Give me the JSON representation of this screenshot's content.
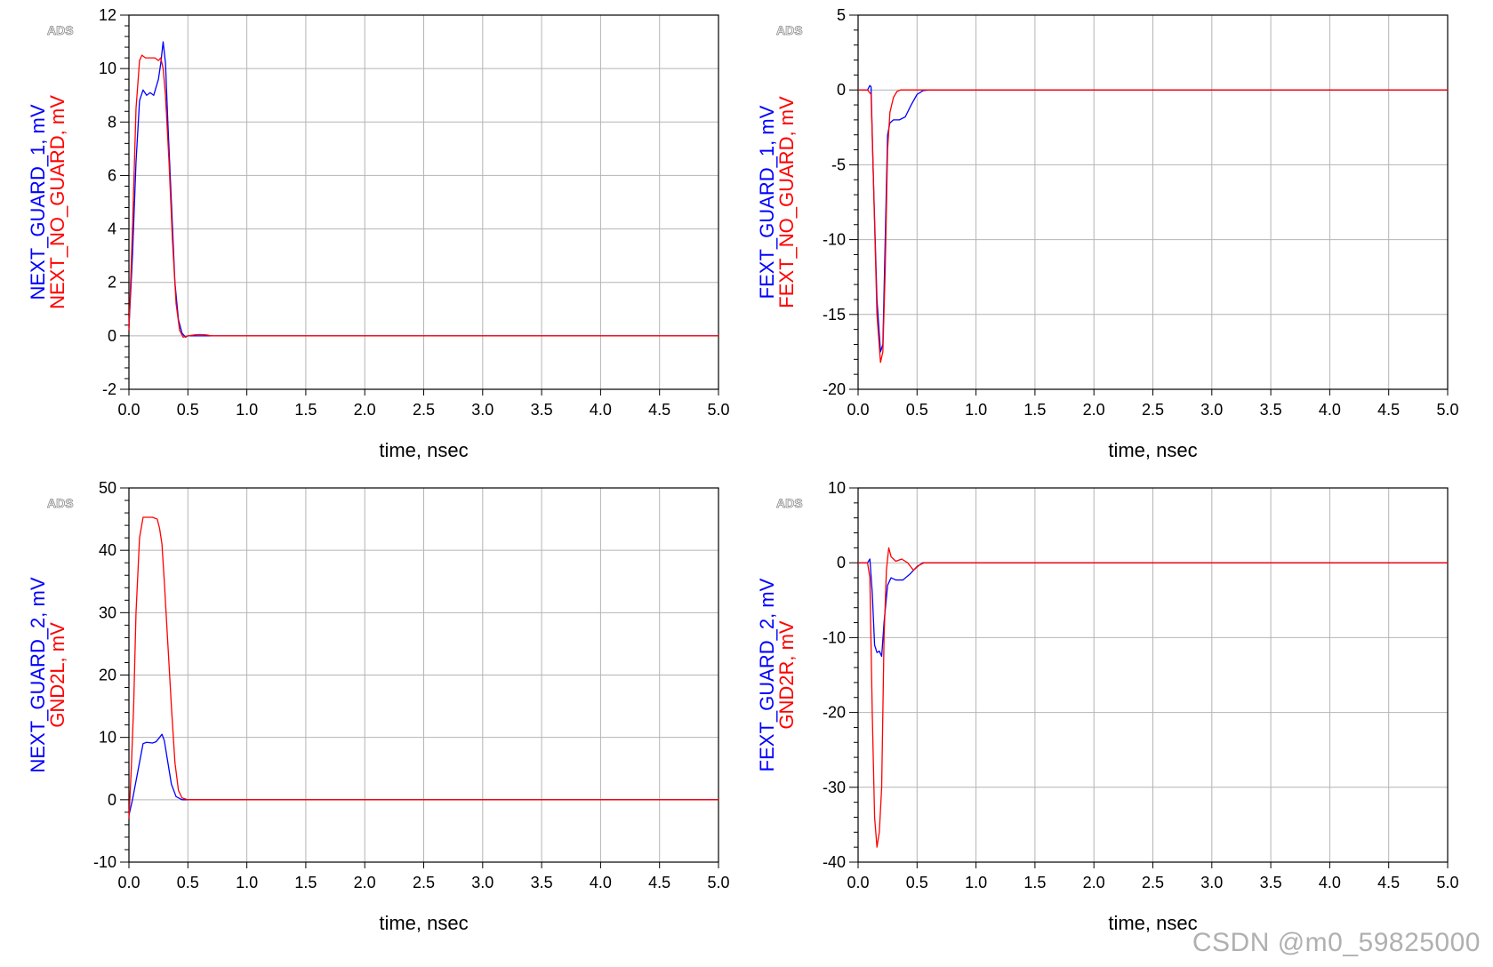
{
  "colors": {
    "series_blue": "#0000ff",
    "series_red": "#ff0000",
    "grid": "#b4b4b4",
    "frame": "#000000"
  },
  "ads_logo": "ADS",
  "watermark": "CSDN @m0_59825000",
  "chart_data": [
    {
      "type": "line",
      "logo": "ADS",
      "xlabel": "time, nsec",
      "ylabel_lines": [
        {
          "text": "NEXT_GUARD_1, mV",
          "color": "#0000ff"
        },
        {
          "text": "NEXT_NO_GUARD, mV",
          "color": "#ff0000"
        }
      ],
      "xlim": [
        0,
        5
      ],
      "ylim": [
        -2,
        12
      ],
      "xticks": [
        0,
        0.5,
        1,
        1.5,
        2,
        2.5,
        3,
        3.5,
        4,
        4.5,
        5
      ],
      "xtick_labels": [
        "0.0",
        "0.5",
        "1.0",
        "1.5",
        "2.0",
        "2.5",
        "3.0",
        "3.5",
        "4.0",
        "4.5",
        "5.0"
      ],
      "yticks": [
        -2,
        0,
        2,
        4,
        6,
        8,
        10,
        12
      ],
      "ytick_labels": [
        "-2",
        "0",
        "2",
        "4",
        "6",
        "8",
        "10",
        "12"
      ],
      "grid": true,
      "series": [
        {
          "name": "NEXT_GUARD_1",
          "color": "#0000ff",
          "x": [
            0,
            0.03,
            0.06,
            0.09,
            0.12,
            0.15,
            0.18,
            0.21,
            0.23,
            0.25,
            0.27,
            0.29,
            0.31,
            0.33,
            0.36,
            0.39,
            0.42,
            0.45,
            0.48,
            0.5,
            0.6,
            1,
            5
          ],
          "y": [
            0.3,
            3,
            6.5,
            8.8,
            9.2,
            9,
            9.1,
            9,
            9.3,
            9.6,
            10.2,
            11,
            10.2,
            8,
            5,
            2,
            0.6,
            0.1,
            -0.05,
            0,
            0,
            0,
            0
          ]
        },
        {
          "name": "NEXT_NO_GUARD",
          "color": "#ff0000",
          "x": [
            0,
            0.03,
            0.06,
            0.09,
            0.11,
            0.14,
            0.18,
            0.22,
            0.25,
            0.27,
            0.29,
            0.31,
            0.34,
            0.37,
            0.4,
            0.43,
            0.46,
            0.5,
            0.55,
            0.6,
            0.66,
            0.7,
            5
          ],
          "y": [
            0.2,
            4,
            8.5,
            10.3,
            10.5,
            10.4,
            10.4,
            10.4,
            10.3,
            10.4,
            10,
            9,
            6.5,
            3.5,
            1.2,
            0.2,
            -0.05,
            0,
            0.03,
            0.05,
            0.03,
            0,
            0
          ]
        }
      ]
    },
    {
      "type": "line",
      "logo": "ADS",
      "xlabel": "time, nsec",
      "ylabel_lines": [
        {
          "text": "FEXT_GUARD_1, mV",
          "color": "#0000ff"
        },
        {
          "text": "FEXT_NO_GUARD, mV",
          "color": "#ff0000"
        }
      ],
      "xlim": [
        0,
        5
      ],
      "ylim": [
        -20,
        5
      ],
      "xticks": [
        0,
        0.5,
        1,
        1.5,
        2,
        2.5,
        3,
        3.5,
        4,
        4.5,
        5
      ],
      "xtick_labels": [
        "0.0",
        "0.5",
        "1.0",
        "1.5",
        "2.0",
        "2.5",
        "3.0",
        "3.5",
        "4.0",
        "4.5",
        "5.0"
      ],
      "yticks": [
        -20,
        -15,
        -10,
        -5,
        0,
        5
      ],
      "ytick_labels": [
        "-20",
        "-15",
        "-10",
        "-5",
        "0",
        "5"
      ],
      "grid": true,
      "series": [
        {
          "name": "FEXT_GUARD_1",
          "color": "#0000ff",
          "x": [
            0,
            0.08,
            0.1,
            0.11,
            0.13,
            0.16,
            0.19,
            0.21,
            0.23,
            0.25,
            0.27,
            0.3,
            0.35,
            0.4,
            0.45,
            0.5,
            0.55,
            0.6,
            5
          ],
          "y": [
            0,
            0,
            0.3,
            0.2,
            -6,
            -14,
            -17.5,
            -17,
            -10,
            -3,
            -2.2,
            -2,
            -2,
            -1.8,
            -1,
            -0.3,
            -0.05,
            0,
            0
          ]
        },
        {
          "name": "FEXT_NO_GUARD",
          "color": "#ff0000",
          "x": [
            0,
            0.08,
            0.11,
            0.13,
            0.16,
            0.19,
            0.21,
            0.23,
            0.25,
            0.27,
            0.3,
            0.33,
            0.36,
            0.4,
            0.45,
            5
          ],
          "y": [
            0,
            0,
            -0.3,
            -6,
            -15,
            -18.2,
            -17.5,
            -12,
            -4,
            -1.5,
            -0.5,
            -0.1,
            0,
            0,
            0,
            0
          ]
        }
      ]
    },
    {
      "type": "line",
      "logo": "ADS",
      "xlabel": "time, nsec",
      "ylabel_lines": [
        {
          "text": "NEXT_GUARD_2, mV",
          "color": "#0000ff"
        },
        {
          "text": "GND2L, mV",
          "color": "#ff0000"
        }
      ],
      "xlim": [
        0,
        5
      ],
      "ylim": [
        -10,
        50
      ],
      "xticks": [
        0,
        0.5,
        1,
        1.5,
        2,
        2.5,
        3,
        3.5,
        4,
        4.5,
        5
      ],
      "xtick_labels": [
        "0.0",
        "0.5",
        "1.0",
        "1.5",
        "2.0",
        "2.5",
        "3.0",
        "3.5",
        "4.0",
        "4.5",
        "5.0"
      ],
      "yticks": [
        -10,
        0,
        10,
        20,
        30,
        40,
        50
      ],
      "ytick_labels": [
        "-10",
        "0",
        "10",
        "20",
        "30",
        "40",
        "50"
      ],
      "grid": true,
      "series": [
        {
          "name": "NEXT_GUARD_2",
          "color": "#0000ff",
          "x": [
            0,
            0.03,
            0.06,
            0.09,
            0.12,
            0.15,
            0.2,
            0.23,
            0.26,
            0.28,
            0.3,
            0.33,
            0.36,
            0.4,
            0.45,
            0.5,
            0.6,
            1,
            5
          ],
          "y": [
            -2.5,
            0,
            3,
            6,
            9,
            9.2,
            9.1,
            9.3,
            10,
            10.5,
            9.5,
            6,
            2.5,
            0.5,
            0,
            0,
            0,
            0,
            0
          ]
        },
        {
          "name": "GND2L",
          "color": "#ff0000",
          "x": [
            0,
            0.02,
            0.04,
            0.06,
            0.09,
            0.12,
            0.2,
            0.24,
            0.26,
            0.28,
            0.3,
            0.33,
            0.36,
            0.39,
            0.42,
            0.45,
            0.5,
            0.6,
            0.65,
            5
          ],
          "y": [
            -3,
            5,
            15,
            30,
            42,
            45.3,
            45.3,
            45,
            43.5,
            41,
            35,
            25,
            15,
            6,
            1.5,
            0.3,
            0,
            0,
            0,
            0
          ]
        }
      ]
    },
    {
      "type": "line",
      "logo": "ADS",
      "xlabel": "time, nsec",
      "ylabel_lines": [
        {
          "text": "FEXT_GUARD_2, mV",
          "color": "#0000ff"
        },
        {
          "text": "GND2R, mV",
          "color": "#ff0000"
        }
      ],
      "xlim": [
        0,
        5
      ],
      "ylim": [
        -40,
        10
      ],
      "xticks": [
        0,
        0.5,
        1,
        1.5,
        2,
        2.5,
        3,
        3.5,
        4,
        4.5,
        5
      ],
      "xtick_labels": [
        "0.0",
        "0.5",
        "1.0",
        "1.5",
        "2.0",
        "2.5",
        "3.0",
        "3.5",
        "4.0",
        "4.5",
        "5.0"
      ],
      "yticks": [
        -40,
        -30,
        -20,
        -10,
        0,
        10
      ],
      "ytick_labels": [
        "-40",
        "-30",
        "-20",
        "-10",
        "0",
        "10"
      ],
      "grid": true,
      "series": [
        {
          "name": "FEXT_GUARD_2",
          "color": "#0000ff",
          "x": [
            0,
            0.08,
            0.1,
            0.12,
            0.14,
            0.16,
            0.18,
            0.2,
            0.22,
            0.25,
            0.28,
            0.32,
            0.38,
            0.44,
            0.5,
            0.55,
            0.6,
            5
          ],
          "y": [
            0,
            0,
            0.5,
            -4,
            -11,
            -12,
            -11.8,
            -12.5,
            -8,
            -3,
            -2,
            -2.3,
            -2.3,
            -1.5,
            -0.5,
            0,
            0,
            0
          ]
        },
        {
          "name": "GND2R",
          "color": "#ff0000",
          "x": [
            0,
            0.08,
            0.1,
            0.12,
            0.14,
            0.16,
            0.18,
            0.2,
            0.22,
            0.24,
            0.26,
            0.28,
            0.32,
            0.37,
            0.42,
            0.47,
            0.52,
            0.56,
            5
          ],
          "y": [
            0,
            0,
            -2,
            -20,
            -34,
            -38,
            -36,
            -30,
            -10,
            -1,
            2,
            0.8,
            0.2,
            0.5,
            0,
            -1,
            -0.3,
            0,
            0
          ]
        }
      ]
    }
  ]
}
